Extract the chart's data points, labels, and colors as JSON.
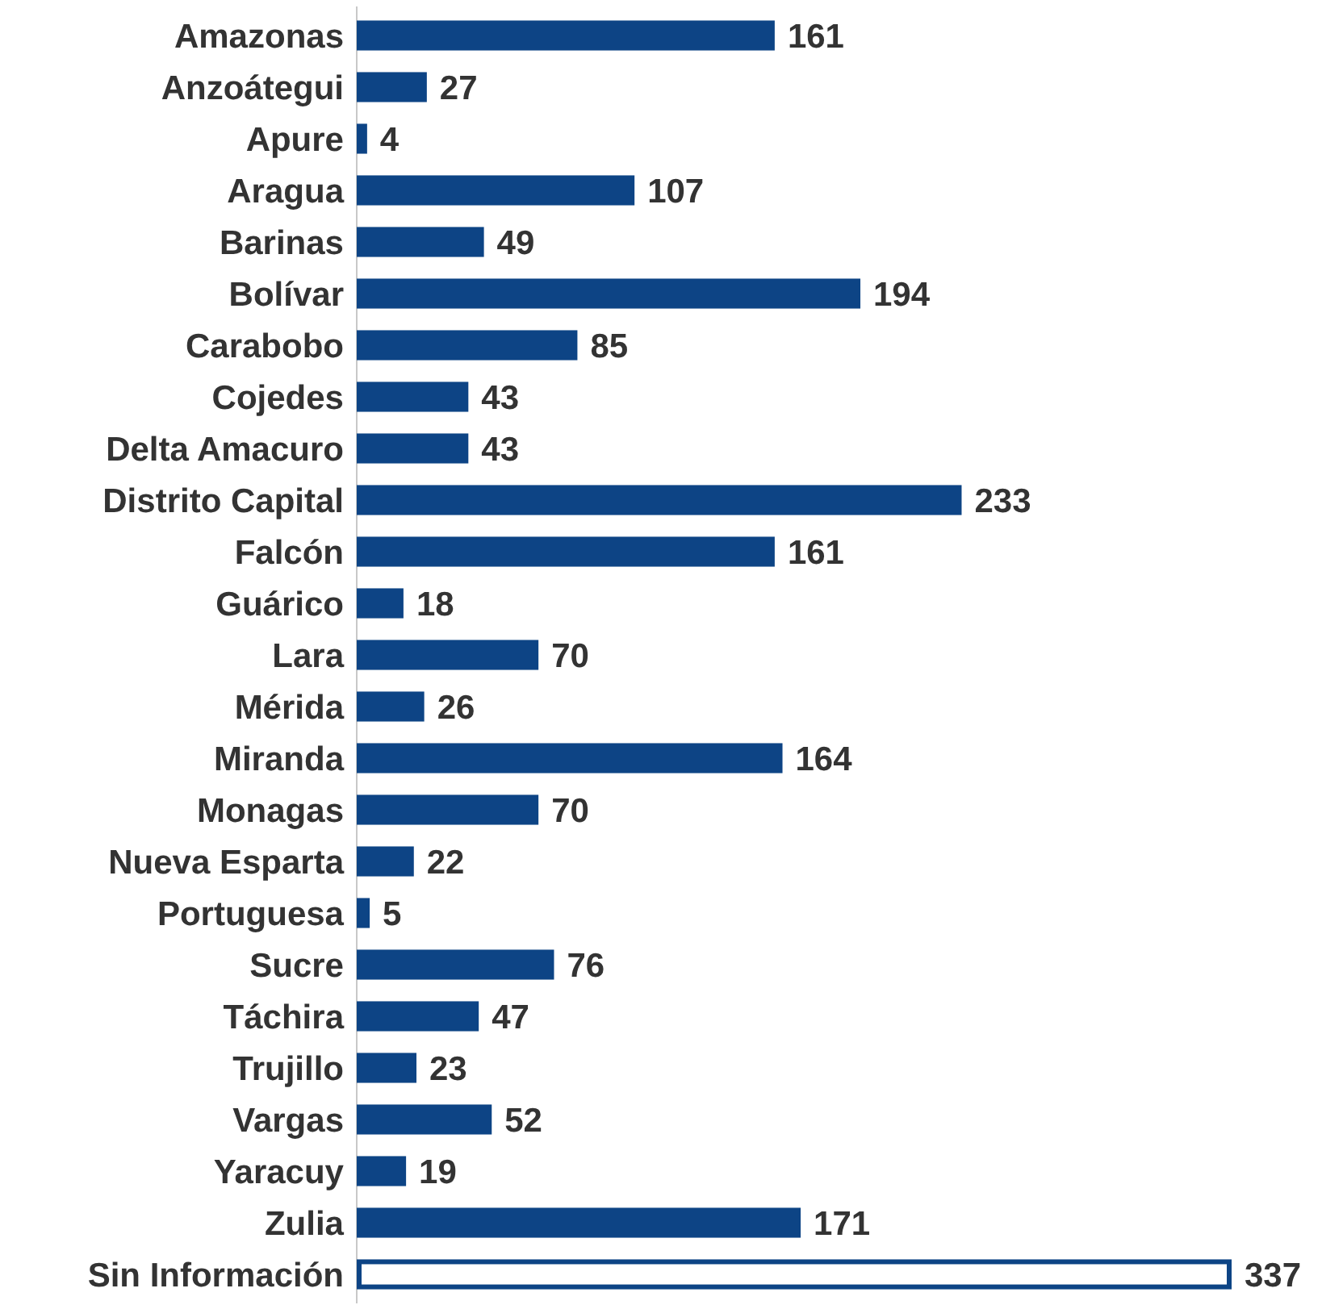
{
  "chart_data": {
    "type": "bar",
    "orientation": "horizontal",
    "data_labels": true,
    "categories": [
      "Amazonas",
      "Anzoátegui",
      "Apure",
      "Aragua",
      "Barinas",
      "Bolívar",
      "Carabobo",
      "Cojedes",
      "Delta Amacuro",
      "Distrito Capital",
      "Falcón",
      "Guárico",
      "Lara",
      "Mérida",
      "Miranda",
      "Monagas",
      "Nueva Esparta",
      "Portuguesa",
      "Sucre",
      "Táchira",
      "Trujillo",
      "Vargas",
      "Yaracuy",
      "Zulia",
      "Sin Información"
    ],
    "values": [
      161,
      27,
      4,
      107,
      49,
      194,
      85,
      43,
      43,
      233,
      161,
      18,
      70,
      26,
      164,
      70,
      22,
      5,
      76,
      47,
      23,
      52,
      19,
      171,
      337
    ],
    "colors": [
      "#0d4485",
      "#0d4485",
      "#0d4485",
      "#0d4485",
      "#0d4485",
      "#0d4485",
      "#0d4485",
      "#0d4485",
      "#0d4485",
      "#0d4485",
      "#0d4485",
      "#0d4485",
      "#0d4485",
      "#0d4485",
      "#0d4485",
      "#0d4485",
      "#0d4485",
      "#0d4485",
      "#0d4485",
      "#0d4485",
      "#0d4485",
      "#0d4485",
      "#0d4485",
      "#0d4485",
      "#ffffff"
    ],
    "color": "#0d4485"
  }
}
